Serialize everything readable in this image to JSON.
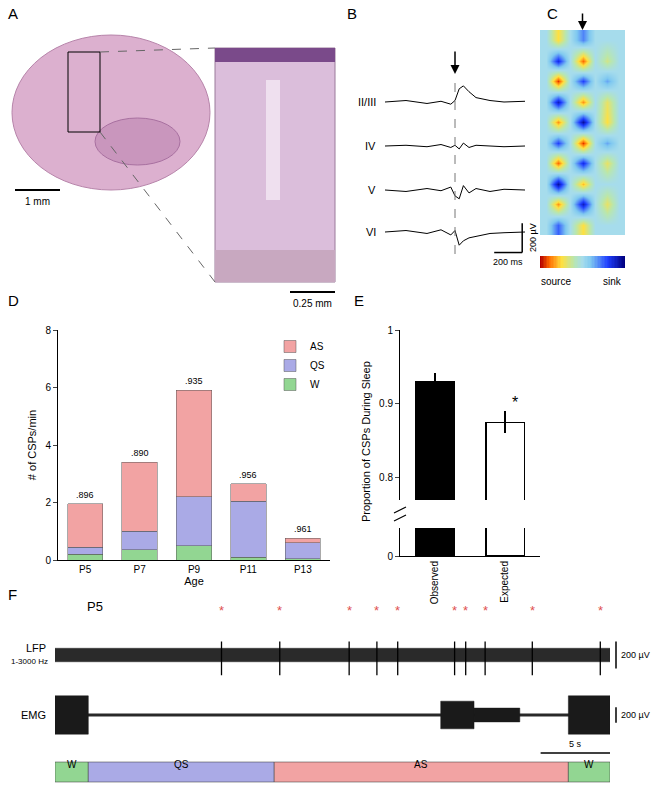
{
  "chart_data": [
    {
      "panel": "D",
      "type": "bar",
      "stacked": true,
      "categories": [
        "P5",
        "P7",
        "P9",
        "P11",
        "P13"
      ],
      "series": [
        {
          "name": "AS",
          "color": "#f2a3a3",
          "values": [
            1.5,
            2.4,
            3.7,
            0.6,
            0.15
          ]
        },
        {
          "name": "QS",
          "color": "#aaaae6",
          "values": [
            0.25,
            0.65,
            1.7,
            1.95,
            0.55
          ]
        },
        {
          "name": "W",
          "color": "#92d692",
          "values": [
            0.2,
            0.35,
            0.5,
            0.1,
            0.05
          ]
        }
      ],
      "ylim": [
        0,
        8
      ],
      "yticks": [
        0,
        2,
        4,
        6,
        8
      ],
      "y_label": "# of CSPs/min",
      "x_label": "Age",
      "legend": "top right",
      "annotations": [
        {
          "category": "P5",
          "text": ".896"
        },
        {
          "category": "P7",
          "text": ".890"
        },
        {
          "category": "P9",
          "text": ".935"
        },
        {
          "category": "P11",
          "text": ".956"
        },
        {
          "category": "P13",
          "text": ".961"
        }
      ]
    },
    {
      "panel": "E",
      "type": "bar",
      "categories": [
        "Observed",
        "Expected"
      ],
      "values": [
        0.93,
        0.875
      ],
      "errors": [
        0.012,
        0.015
      ],
      "colors": [
        "#000000",
        "#ffffff"
      ],
      "ylim": [
        0.77,
        1
      ],
      "yticks": [
        0.8,
        0.9,
        1
      ],
      "ylim_break": [
        0,
        0.04
      ],
      "yticks_break": [
        0
      ],
      "y_label": "Proportion of CSPs During Sleep",
      "annotations": [
        {
          "category": "Expected",
          "text": "*"
        }
      ]
    }
  ],
  "panels": {
    "A": {
      "panel": "A",
      "scale_bars": [
        "1 mm",
        "0.25 mm"
      ]
    },
    "B": {
      "panel": "B",
      "xlim": [
        -500,
        500
      ],
      "ylim": [
        -150,
        150
      ],
      "event_time": 0,
      "x": [
        -500,
        -350,
        -200,
        -100,
        -30,
        0,
        30,
        60,
        100,
        150,
        250,
        350,
        500
      ],
      "traces": [
        {
          "name": "II/III",
          "values": [
            0,
            10,
            -10,
            5,
            -15,
            10,
            90,
            110,
            70,
            30,
            10,
            0,
            5
          ]
        },
        {
          "name": "IV",
          "values": [
            0,
            5,
            -5,
            10,
            -10,
            5,
            -20,
            20,
            -10,
            5,
            0,
            -5,
            0
          ]
        },
        {
          "name": "V",
          "values": [
            0,
            -10,
            10,
            -5,
            20,
            -40,
            -60,
            30,
            -20,
            10,
            -10,
            5,
            0
          ]
        },
        {
          "name": "VI",
          "values": [
            0,
            10,
            -10,
            15,
            -20,
            10,
            -90,
            -60,
            -40,
            -30,
            -10,
            -5,
            0
          ]
        }
      ],
      "scale_bars": [
        {
          "value": 200,
          "label": "200 ms"
        },
        {
          "value": 200,
          "label": "200 µV"
        }
      ]
    },
    "C": {
      "panel": "C",
      "event_time": 0,
      "x": [
        -300,
        -200,
        -100,
        0,
        100,
        200,
        300
      ],
      "z": [
        [
          0,
          0.5,
          0,
          -0.4,
          0,
          0,
          0
        ],
        [
          0,
          -0.7,
          0,
          0.8,
          0,
          0.3,
          0
        ],
        [
          0,
          0.9,
          0,
          -0.6,
          0,
          -0.3,
          0
        ],
        [
          0,
          -0.8,
          0,
          0.7,
          0,
          0.4,
          0
        ],
        [
          0,
          0.7,
          0,
          -0.9,
          0,
          0.5,
          0
        ],
        [
          0,
          -0.6,
          0,
          0.9,
          0,
          -0.3,
          0
        ],
        [
          0,
          0.8,
          0,
          -0.7,
          0,
          0.4,
          0
        ],
        [
          0,
          -0.9,
          0,
          0.6,
          0,
          0,
          0
        ],
        [
          0,
          0.7,
          0,
          -0.8,
          0,
          0.4,
          0
        ],
        [
          0,
          -0.5,
          0,
          0.5,
          0,
          0,
          0
        ]
      ],
      "zlim": [
        -1,
        1
      ],
      "colorbar_labels": [
        "source",
        "sink"
      ]
    },
    "F": {
      "panel": "F",
      "title": "P5",
      "xlim": [
        0,
        40
      ],
      "marker_text": "*",
      "lfp": {
        "label": "LFP",
        "sublabel": "1-3000 Hz",
        "ylim": [
          -200,
          200
        ],
        "band": 50,
        "events": [
          12.0,
          16.2,
          21.2,
          23.2,
          24.7,
          28.8,
          29.6,
          31.0,
          34.4,
          39.3
        ],
        "event_peak": 100,
        "event_trough": -150,
        "scale_bar": {
          "value": 200,
          "label": "200 µV"
        }
      },
      "emg": {
        "label": "EMG",
        "ylim": [
          -300,
          300
        ],
        "baseline": 15,
        "bursts": [
          {
            "start": 0,
            "end": 2.4,
            "amplitude": 250
          },
          {
            "start": 27.8,
            "end": 30.2,
            "amplitude": 180
          },
          {
            "start": 30.2,
            "end": 33.5,
            "amplitude": 90
          },
          {
            "start": 37,
            "end": 40,
            "amplitude": 250
          }
        ],
        "scale_bar": {
          "value": 200,
          "label": "200 µV"
        }
      },
      "states": [
        {
          "name": "W",
          "start": 0,
          "end": 2.4,
          "color": "#92d692"
        },
        {
          "name": "QS",
          "start": 2.4,
          "end": 15.8,
          "color": "#aaaae6"
        },
        {
          "name": "AS",
          "start": 15.8,
          "end": 37,
          "color": "#f2a3a3"
        },
        {
          "name": "W",
          "start": 37,
          "end": 40,
          "color": "#92d692"
        }
      ],
      "time_scale_bar": {
        "value": 5,
        "label": "5 s"
      }
    }
  }
}
